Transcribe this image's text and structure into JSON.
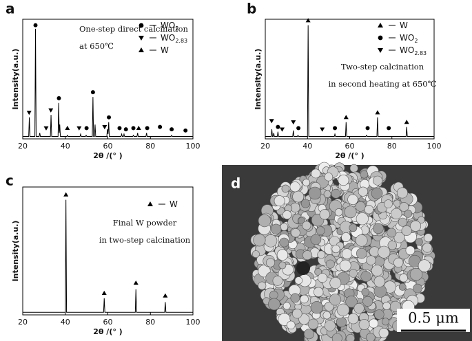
{
  "chart_data": [
    {
      "type": "line",
      "panel_label": "a",
      "xlabel": "2θ /(°  )",
      "ylabel": "Intensity(a.u.)",
      "annotations": [
        "One-step direct calcination",
        "at 650℃"
      ],
      "xlim": [
        20,
        100
      ],
      "xticks": [
        20,
        40,
        60,
        80,
        100
      ],
      "ylim": [
        0,
        100
      ],
      "pattern": {
        "color": "#000",
        "x": [
          20,
          22.8,
          23.1,
          23.4,
          25.7,
          26.0,
          26.3,
          27.7,
          28.0,
          28.3,
          33.0,
          33.3,
          33.6,
          36.6,
          36.9,
          37.15,
          37.4,
          37.7,
          40.7,
          41.0,
          41.3,
          46.9,
          47.2,
          47.5,
          49.5,
          49.8,
          50.1,
          52.7,
          53.0,
          53.3,
          53.7,
          54.0,
          54.3,
          59.5,
          59.8,
          60.1,
          60.4,
          60.7,
          66.2,
          66.5,
          66.8,
          67.3,
          67.6,
          67.9,
          71.7,
          72.0,
          72.3,
          73.7,
          74.0,
          74.3,
          77.9,
          78.2,
          78.5,
          89.7,
          90.0,
          90.3,
          100
        ],
        "values": [
          2,
          2,
          18,
          2,
          2,
          92,
          2,
          2,
          5,
          2,
          2,
          20,
          2,
          2,
          30,
          5,
          12,
          2,
          2,
          3,
          2,
          2,
          4,
          2,
          2,
          3,
          2,
          2,
          35,
          2,
          2,
          12,
          2,
          2,
          8,
          4,
          14,
          2,
          2,
          4,
          2,
          2,
          4,
          2,
          2,
          3,
          2,
          2,
          5,
          2,
          2,
          5,
          2,
          2,
          3,
          2,
          2
        ]
      },
      "series": [
        {
          "name": "WO",
          "sub": "2",
          "marker": "circle",
          "x": [
            26.0,
            37.0,
            50.0,
            53.0,
            60.5,
            65.5,
            68.5,
            72.0,
            78.5,
            84.5,
            90.0,
            96.5
          ],
          "values": [
            95,
            34,
            9,
            39,
            18,
            9,
            8,
            9,
            9,
            10,
            8,
            7
          ]
        },
        {
          "name": "WO",
          "sub": "2.83",
          "marker": "triangle-down",
          "x": [
            23.0,
            31.0,
            33.2,
            46.5,
            58.5
          ],
          "values": [
            22,
            9,
            24,
            9,
            10
          ]
        },
        {
          "name": "W",
          "sub": "",
          "marker": "triangle-up",
          "x": [
            41.0,
            74.5
          ],
          "values": [
            9,
            9
          ]
        }
      ]
    },
    {
      "type": "line",
      "panel_label": "b",
      "xlabel": "2θ /(°  )",
      "ylabel": "Intensity(a.u.)",
      "annotations": [
        "Two-step calcination",
        "in second heating at 650℃"
      ],
      "xlim": [
        20,
        100
      ],
      "xticks": [
        20,
        40,
        60,
        80,
        100
      ],
      "ylim": [
        0,
        100
      ],
      "pattern": {
        "color": "#000",
        "x": [
          20,
          22.8,
          23.1,
          23.4,
          23.7,
          24.0,
          24.3,
          25.7,
          26.0,
          26.3,
          33.0,
          33.3,
          33.6,
          35.2,
          35.5,
          35.8,
          40.0,
          40.3,
          40.6,
          52.7,
          53.0,
          53.3,
          58.0,
          58.3,
          58.6,
          67.7,
          68.0,
          68.3,
          72.9,
          73.2,
          73.5,
          86.7,
          87.0,
          87.3,
          100
        ],
        "values": [
          2,
          2,
          8,
          2,
          2,
          5,
          2,
          2,
          6,
          2,
          2,
          7,
          2,
          2,
          3,
          2,
          2,
          95,
          2,
          2,
          4,
          2,
          2,
          14,
          2,
          2,
          3,
          2,
          2,
          18,
          2,
          2,
          10,
          2,
          2
        ]
      },
      "series": [
        {
          "name": "W",
          "sub": "",
          "marker": "triangle-up",
          "x": [
            40.3,
            58.3,
            73.2,
            87.0
          ],
          "values": [
            99,
            18,
            22,
            14
          ]
        },
        {
          "name": "WO",
          "sub": "2",
          "marker": "circle",
          "x": [
            26.0,
            35.7,
            53.0,
            68.5,
            78.5
          ],
          "values": [
            10,
            9,
            9,
            9,
            9
          ]
        },
        {
          "name": "WO",
          "sub": "2.83",
          "marker": "triangle-down",
          "x": [
            23.0,
            28.0,
            33.3,
            47.0
          ],
          "values": [
            15,
            8,
            14,
            8
          ]
        }
      ]
    },
    {
      "type": "line",
      "panel_label": "c",
      "xlabel": "2θ /(°  )",
      "ylabel": "Intensity(a.u.)",
      "annotations": [
        "Final W powder",
        "in two-step calcination"
      ],
      "xlim": [
        20,
        100
      ],
      "xticks": [
        20,
        40,
        60,
        80,
        100
      ],
      "ylim": [
        0,
        100
      ],
      "pattern": {
        "color": "#000",
        "x": [
          20,
          40.0,
          40.3,
          40.6,
          58.0,
          58.3,
          58.6,
          72.9,
          73.2,
          73.5,
          86.7,
          87.0,
          87.3,
          100
        ],
        "values": [
          2,
          2,
          90,
          2,
          2,
          13,
          2,
          2,
          20,
          2,
          2,
          10,
          2,
          2
        ]
      },
      "series": [
        {
          "name": "W",
          "sub": "",
          "marker": "triangle-up",
          "x": [
            40.3,
            58.3,
            73.2,
            87.0
          ],
          "values": [
            94,
            17,
            25,
            15
          ]
        }
      ]
    }
  ],
  "sem_image": {
    "label": "d",
    "scale_bar": "0.5 μm"
  }
}
